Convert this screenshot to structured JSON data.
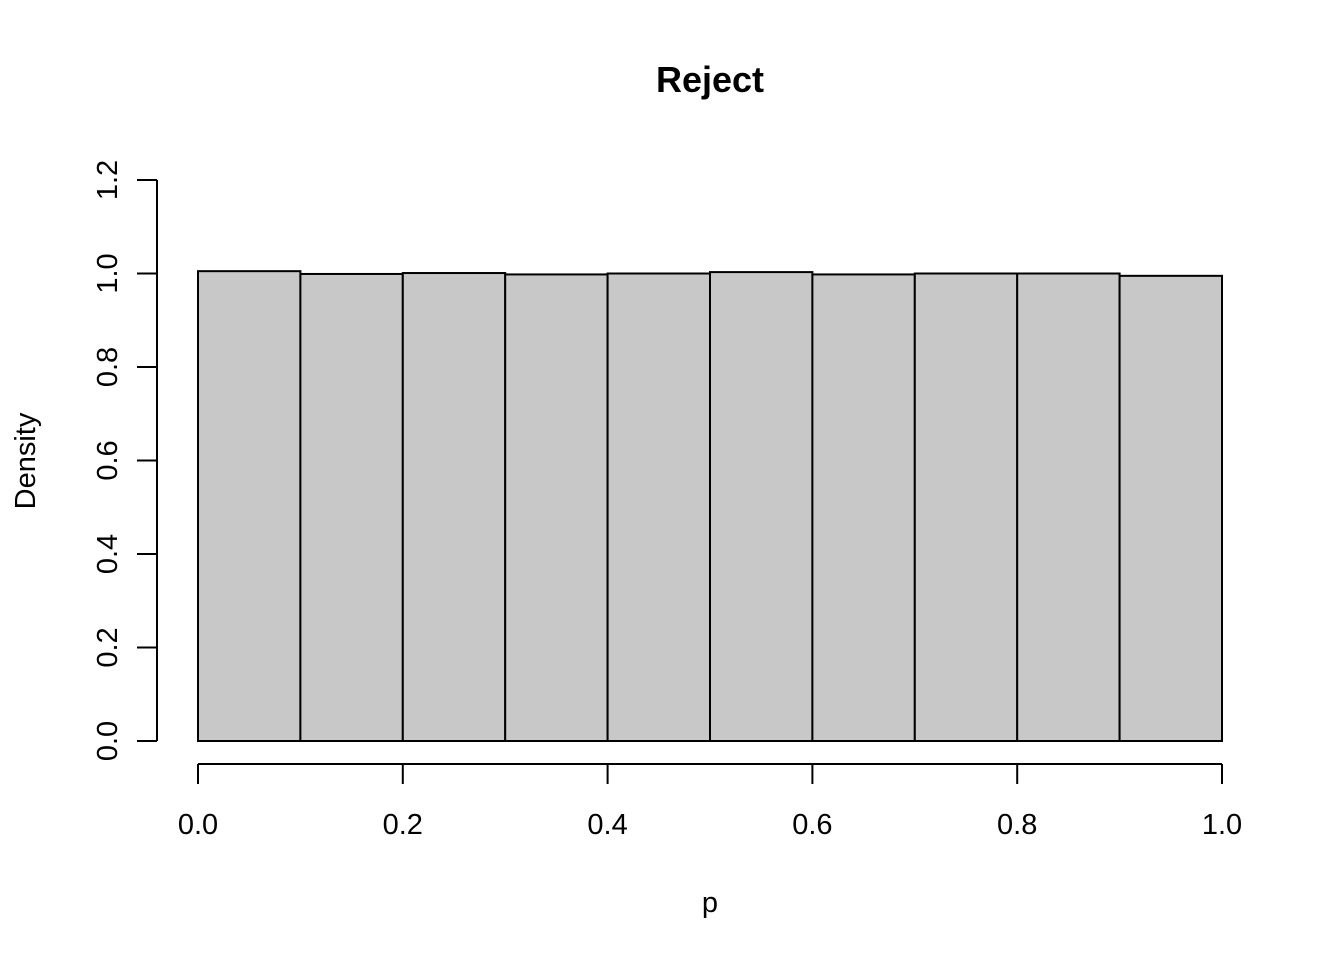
{
  "chart_data": {
    "type": "bar",
    "title": "Reject",
    "xlabel": "p",
    "ylabel": "Density",
    "bar_color": "#c8c8c8",
    "edge_color": "#000000",
    "xlim": [
      0.0,
      1.0
    ],
    "ylim": [
      0.0,
      1.2
    ],
    "x_ticks": [
      0.0,
      0.2,
      0.4,
      0.6,
      0.8,
      1.0
    ],
    "x_tick_labels": [
      "0.0",
      "0.2",
      "0.4",
      "0.6",
      "0.8",
      "1.0"
    ],
    "y_ticks": [
      0.0,
      0.2,
      0.4,
      0.6,
      0.8,
      1.0,
      1.2
    ],
    "y_tick_labels": [
      "0.0",
      "0.2",
      "0.4",
      "0.6",
      "0.8",
      "1.0",
      "1.2"
    ],
    "bin_edges": [
      0.0,
      0.1,
      0.2,
      0.3,
      0.4,
      0.5,
      0.6,
      0.7,
      0.8,
      0.9,
      1.0
    ],
    "values": [
      1.005,
      0.999,
      1.001,
      0.998,
      1.0,
      1.003,
      0.998,
      1.0,
      1.0,
      0.995
    ],
    "grid": false,
    "legend": "none"
  }
}
